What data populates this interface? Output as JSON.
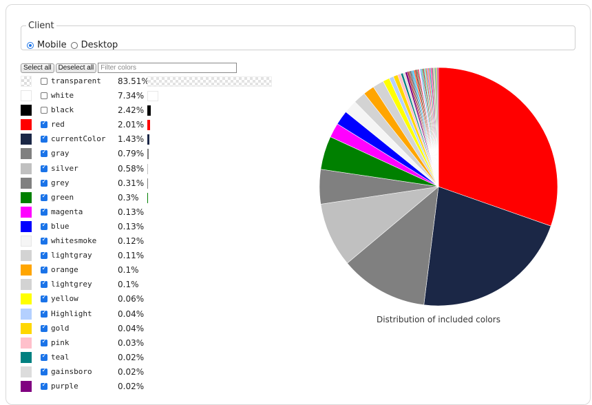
{
  "client": {
    "legend": "Client",
    "options": [
      {
        "label": "Mobile",
        "selected": true
      },
      {
        "label": "Desktop",
        "selected": false
      }
    ]
  },
  "toolbar": {
    "select_all": "Select all",
    "deselect_all": "Deselect all",
    "filter_placeholder": "Filter colors"
  },
  "colors": [
    {
      "name": "transparent",
      "pct": "83.51%",
      "value": 83.51,
      "checked": false,
      "swatch": "transparent"
    },
    {
      "name": "white",
      "pct": "7.34%",
      "value": 7.34,
      "checked": false,
      "swatch": "#ffffff"
    },
    {
      "name": "black",
      "pct": "2.42%",
      "value": 2.42,
      "checked": false,
      "swatch": "#000000"
    },
    {
      "name": "red",
      "pct": "2.01%",
      "value": 2.01,
      "checked": true,
      "swatch": "#ff0000"
    },
    {
      "name": "currentColor",
      "pct": "1.43%",
      "value": 1.43,
      "checked": true,
      "swatch": "#1b2746"
    },
    {
      "name": "gray",
      "pct": "0.79%",
      "value": 0.79,
      "checked": true,
      "swatch": "#808080"
    },
    {
      "name": "silver",
      "pct": "0.58%",
      "value": 0.58,
      "checked": true,
      "swatch": "#c0c0c0"
    },
    {
      "name": "grey",
      "pct": "0.31%",
      "value": 0.31,
      "checked": true,
      "swatch": "#808080"
    },
    {
      "name": "green",
      "pct": "0.3%",
      "value": 0.3,
      "checked": true,
      "swatch": "#008000"
    },
    {
      "name": "magenta",
      "pct": "0.13%",
      "value": 0.13,
      "checked": true,
      "swatch": "#ff00ff"
    },
    {
      "name": "blue",
      "pct": "0.13%",
      "value": 0.13,
      "checked": true,
      "swatch": "#0000ff"
    },
    {
      "name": "whitesmoke",
      "pct": "0.12%",
      "value": 0.12,
      "checked": true,
      "swatch": "#f5f5f5"
    },
    {
      "name": "lightgray",
      "pct": "0.11%",
      "value": 0.11,
      "checked": true,
      "swatch": "#d3d3d3"
    },
    {
      "name": "orange",
      "pct": "0.1%",
      "value": 0.1,
      "checked": true,
      "swatch": "#ffa500"
    },
    {
      "name": "lightgrey",
      "pct": "0.1%",
      "value": 0.1,
      "checked": true,
      "swatch": "#d3d3d3"
    },
    {
      "name": "yellow",
      "pct": "0.06%",
      "value": 0.06,
      "checked": true,
      "swatch": "#ffff00"
    },
    {
      "name": "Highlight",
      "pct": "0.04%",
      "value": 0.04,
      "checked": true,
      "swatch": "#b4d0ff"
    },
    {
      "name": "gold",
      "pct": "0.04%",
      "value": 0.04,
      "checked": true,
      "swatch": "#ffd700"
    },
    {
      "name": "pink",
      "pct": "0.03%",
      "value": 0.03,
      "checked": true,
      "swatch": "#ffc0cb"
    },
    {
      "name": "teal",
      "pct": "0.02%",
      "value": 0.02,
      "checked": true,
      "swatch": "#008080"
    },
    {
      "name": "gainsboro",
      "pct": "0.02%",
      "value": 0.02,
      "checked": true,
      "swatch": "#dcdcdc"
    },
    {
      "name": "purple",
      "pct": "0.02%",
      "value": 0.02,
      "checked": true,
      "swatch": "#800080"
    }
  ],
  "chart_data": {
    "type": "pie",
    "title": "Distribution of included colors",
    "categories": [
      "red",
      "currentColor",
      "gray",
      "silver",
      "grey",
      "green",
      "magenta",
      "blue",
      "whitesmoke",
      "lightgray",
      "orange",
      "lightgrey",
      "yellow",
      "Highlight",
      "gold",
      "pink",
      "teal",
      "gainsboro",
      "purple"
    ],
    "values": [
      2.01,
      1.43,
      0.79,
      0.58,
      0.31,
      0.3,
      0.13,
      0.13,
      0.12,
      0.11,
      0.1,
      0.1,
      0.06,
      0.04,
      0.04,
      0.03,
      0.02,
      0.02,
      0.02
    ],
    "colors": [
      "#ff0000",
      "#1b2746",
      "#808080",
      "#c0c0c0",
      "#808080",
      "#008000",
      "#ff00ff",
      "#0000ff",
      "#f5f5f5",
      "#d3d3d3",
      "#ffa500",
      "#d3d3d3",
      "#ffff00",
      "#b4d0ff",
      "#ffd700",
      "#ffc0cb",
      "#008080",
      "#dcdcdc",
      "#800080"
    ],
    "tail_colors": [
      "#8b0000",
      "#a52a2a",
      "#2f4f4f",
      "#4682b4",
      "#00bfff",
      "#ff4500",
      "#800000",
      "#556b2f",
      "#dc143c",
      "#e6e6fa",
      "#6495ed",
      "#3cb371",
      "#b22222",
      "#40e0d0",
      "#d2691e",
      "#9370db",
      "#ff6347",
      "#20b2aa",
      "#ff1493",
      "#696969",
      "#deb887",
      "#5f9ea0",
      "#9acd32",
      "#c71585"
    ]
  }
}
